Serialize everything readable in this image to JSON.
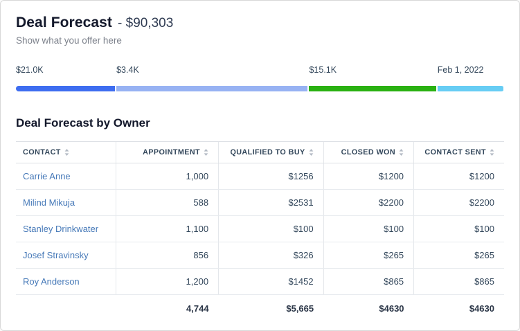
{
  "header": {
    "title": "Deal Forecast",
    "amount": "- $90,303",
    "subtitle": "Show what you offer here"
  },
  "progress": {
    "segments": [
      {
        "label": "$21.0K",
        "color": "#3e6df0",
        "width_pct": 20.3
      },
      {
        "label": "$3.4K",
        "color": "#97b2f3",
        "width_pct": 39.2
      },
      {
        "label": "$15.1K",
        "color": "#2ab112",
        "width_pct": 26.0
      },
      {
        "label": "Feb 1, 2022",
        "color": "#67cdf4",
        "width_pct": 13.5
      }
    ]
  },
  "table": {
    "title": "Deal Forecast by Owner",
    "columns": [
      "Contact",
      "Appointment",
      "Qualified to Buy",
      "Closed Won",
      "Contact Sent"
    ],
    "rows": [
      {
        "contact": "Carrie Anne",
        "values": [
          "1,000",
          "$1256",
          "$1200",
          "$1200"
        ]
      },
      {
        "contact": "Milind Mikuja",
        "values": [
          "588",
          "$2531",
          "$2200",
          "$2200"
        ]
      },
      {
        "contact": "Stanley Drinkwater",
        "values": [
          "1,100",
          "$100",
          "$100",
          "$100"
        ]
      },
      {
        "contact": "Josef Stravinsky",
        "values": [
          "856",
          "$326",
          "$265",
          "$265"
        ]
      },
      {
        "contact": "Roy Anderson",
        "values": [
          "1,200",
          "$1452",
          "$865",
          "$865"
        ]
      }
    ],
    "totals": [
      "4,744",
      "$5,665",
      "$4630",
      "$4630"
    ]
  }
}
